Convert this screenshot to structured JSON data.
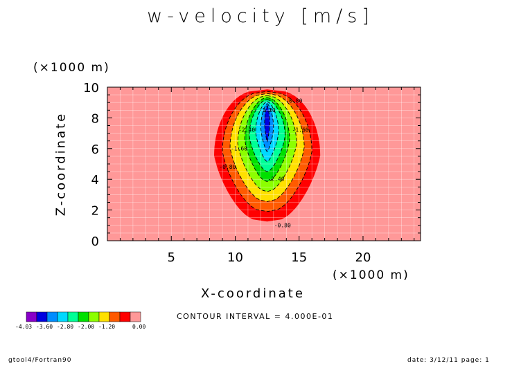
{
  "chart_data": {
    "type": "heatmap",
    "title": "w-velocity [m/s]",
    "xlabel": "X-coordinate",
    "ylabel": "Z-coordinate",
    "x_multiplier": "(×1000 m)",
    "y_multiplier": "(×1000 m)",
    "xlim": [
      0,
      24.5
    ],
    "ylim": [
      0,
      10
    ],
    "x_ticks": [
      5,
      10,
      15,
      20
    ],
    "y_ticks": [
      0,
      2,
      4,
      6,
      8,
      10
    ],
    "grid": true,
    "contour_interval": "CONTOUR INTERVAL = 4.000E-01",
    "min_center": {
      "x": 12.5,
      "z": 7.9
    },
    "contour_levels": [
      {
        "max_value": -0.4,
        "color": "#ff0000",
        "x_range_z5": [
          7.9,
          16.2
        ]
      },
      {
        "max_value": -0.8,
        "color": "#ff5a00",
        "x_range_z5": [
          8.6,
          15.6
        ]
      },
      {
        "max_value": -1.2,
        "color": "#ffe000",
        "x_range_z5": [
          9.4,
          15.2
        ]
      },
      {
        "max_value": -1.6,
        "color": "#8cff00",
        "x_range_z5": [
          10.0,
          14.6
        ]
      },
      {
        "max_value": -2.0,
        "color": "#00e000",
        "x_range_z5": [
          10.7,
          14.2
        ]
      },
      {
        "max_value": -2.4,
        "color": "#00ff96",
        "x_range_z5": [
          11.1,
          13.9
        ]
      },
      {
        "max_value": -2.8,
        "color": "#00d8ff",
        "x_range_z5": [
          11.6,
          13.4
        ]
      },
      {
        "max_value": -3.2,
        "color": "#008cff",
        "x_range_z5": [
          12.0,
          13.0
        ]
      },
      {
        "max_value": -3.6,
        "color": "#0000e0",
        "x_range_z5": [
          12.3,
          12.7
        ]
      }
    ],
    "contour_labels": [
      {
        "text": "-0.80",
        "x": 14.6,
        "z": 9.1
      },
      {
        "text": "-1.20",
        "x": 12.5,
        "z": 8.5
      },
      {
        "text": "-2.40",
        "x": 10.9,
        "z": 7.2
      },
      {
        "text": "-1.60",
        "x": 15.1,
        "z": 7.2
      },
      {
        "text": "-1.60",
        "x": 10.3,
        "z": 6.0
      },
      {
        "text": "-0.80",
        "x": 9.4,
        "z": 4.8
      },
      {
        "text": "-2.40",
        "x": 13.2,
        "z": 4.0
      },
      {
        "text": "-0.80",
        "x": 13.7,
        "z": 1.0
      }
    ],
    "colorbar": {
      "colors": [
        "#8800c8",
        "#0000e0",
        "#008cff",
        "#00d8ff",
        "#00ff96",
        "#00e000",
        "#8cff00",
        "#ffe000",
        "#ff5a00",
        "#ff0000",
        "#ff9898"
      ],
      "labels": [
        "-4.03",
        "-3.60",
        "-2.80",
        "-2.00",
        "-1.20",
        "0.00"
      ]
    },
    "background_color": "#ff9898"
  },
  "footer": {
    "left": "gtool4/Fortran90",
    "right": "date: 3/12/11 page: 1"
  }
}
